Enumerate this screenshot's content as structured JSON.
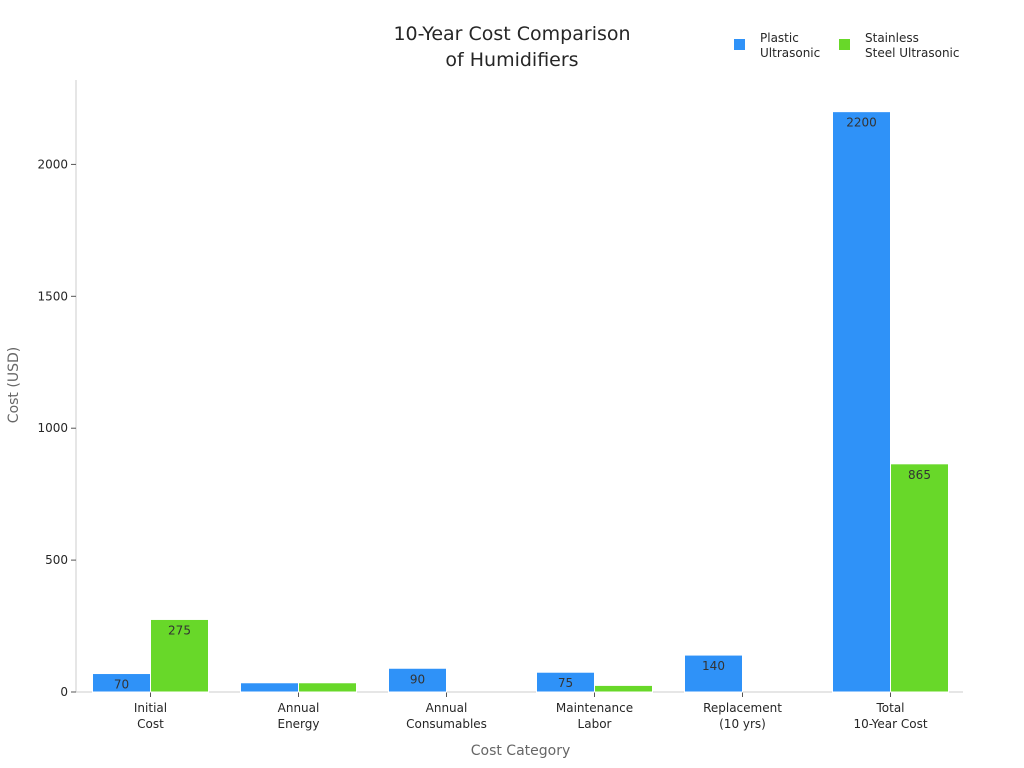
{
  "chart_data": {
    "type": "bar",
    "title_lines": [
      "10-Year Cost Comparison",
      "of Humidifiers"
    ],
    "xlabel": "Cost Category",
    "ylabel": "Cost (USD)",
    "ylim": [
      0,
      2320
    ],
    "yticks": [
      0,
      500,
      1000,
      1500,
      2000
    ],
    "grid": false,
    "legend_position": "top-right",
    "categories": [
      [
        "Initial",
        "Cost"
      ],
      [
        "Annual",
        "Energy"
      ],
      [
        "Annual",
        "Consumables"
      ],
      [
        "Maintenance",
        "Labor"
      ],
      [
        "Replacement",
        "(10 yrs)"
      ],
      [
        "Total",
        "10-Year Cost"
      ]
    ],
    "series": [
      {
        "name_lines": [
          "Plastic",
          "Ultrasonic"
        ],
        "color": "#2f92f8",
        "values": [
          70,
          35,
          90,
          75,
          140,
          2200
        ],
        "labels": [
          "70",
          "",
          "90",
          "75",
          "140",
          "2200"
        ]
      },
      {
        "name_lines": [
          "Stainless",
          "Steel Ultrasonic"
        ],
        "color": "#68d829",
        "values": [
          275,
          35,
          0,
          25,
          0,
          865
        ],
        "labels": [
          "275",
          "",
          "",
          "",
          "",
          "865"
        ]
      }
    ]
  }
}
